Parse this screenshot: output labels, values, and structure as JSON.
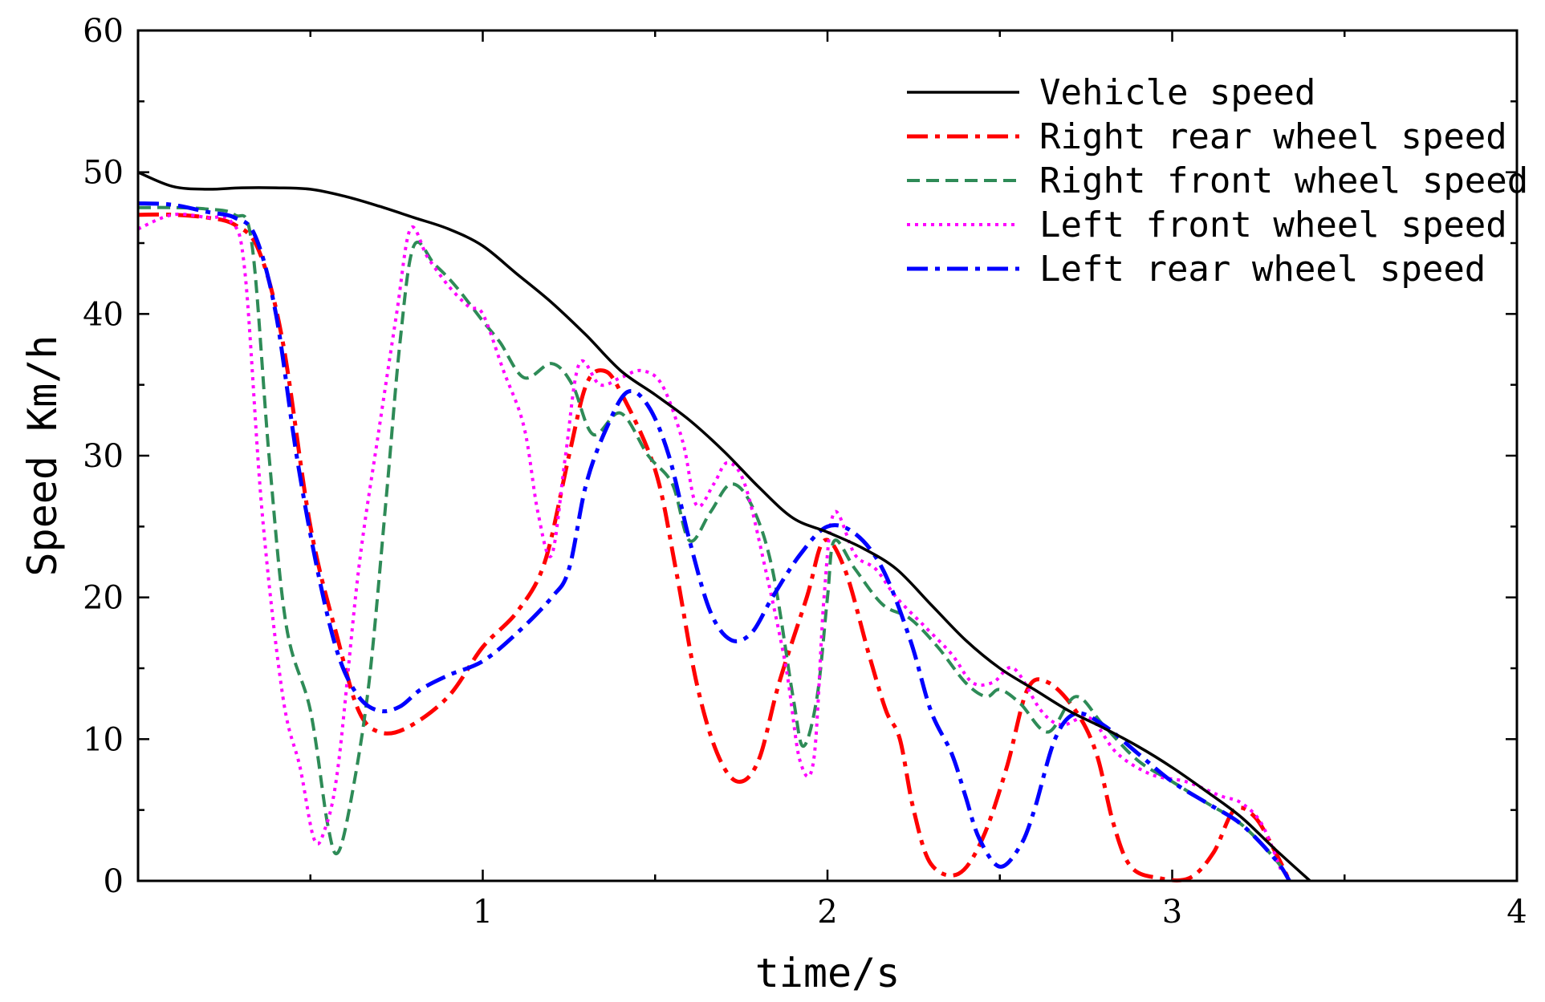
{
  "chart_data": {
    "type": "line",
    "title": "",
    "xlabel": "time/s",
    "ylabel": "Speed Km/h",
    "xlim": [
      0,
      4
    ],
    "ylim": [
      0,
      60
    ],
    "xticks": [
      1,
      2,
      3,
      4
    ],
    "yticks": [
      0,
      10,
      20,
      30,
      40,
      50,
      60
    ],
    "grid": false,
    "legend_position": "top-right",
    "series": [
      {
        "name": "Vehicle speed",
        "color": "#000000",
        "dash": "solid",
        "points": [
          [
            0,
            50
          ],
          [
            0.1,
            49
          ],
          [
            0.2,
            48.8
          ],
          [
            0.3,
            48.9
          ],
          [
            0.4,
            48.9
          ],
          [
            0.5,
            48.8
          ],
          [
            0.6,
            48.3
          ],
          [
            0.7,
            47.6
          ],
          [
            0.8,
            46.8
          ],
          [
            0.9,
            46
          ],
          [
            1.0,
            44.8
          ],
          [
            1.1,
            42.8
          ],
          [
            1.2,
            40.8
          ],
          [
            1.3,
            38.5
          ],
          [
            1.4,
            36
          ],
          [
            1.5,
            34.3
          ],
          [
            1.6,
            32.5
          ],
          [
            1.7,
            30.3
          ],
          [
            1.8,
            27.8
          ],
          [
            1.9,
            25.6
          ],
          [
            2.0,
            24.6
          ],
          [
            2.1,
            23.5
          ],
          [
            2.2,
            22
          ],
          [
            2.3,
            19.5
          ],
          [
            2.4,
            17
          ],
          [
            2.5,
            15
          ],
          [
            2.6,
            13.5
          ],
          [
            2.7,
            12
          ],
          [
            2.8,
            10.8
          ],
          [
            2.9,
            9.5
          ],
          [
            3.0,
            8
          ],
          [
            3.1,
            6.3
          ],
          [
            3.2,
            4.5
          ],
          [
            3.3,
            2.2
          ],
          [
            3.4,
            0
          ]
        ]
      },
      {
        "name": "Right rear wheel speed",
        "color": "#ff0000",
        "dash": "dash-dot",
        "points": [
          [
            0,
            47
          ],
          [
            0.1,
            47
          ],
          [
            0.2,
            46.8
          ],
          [
            0.28,
            46.3
          ],
          [
            0.35,
            44.5
          ],
          [
            0.42,
            38
          ],
          [
            0.5,
            25
          ],
          [
            0.58,
            17
          ],
          [
            0.64,
            12
          ],
          [
            0.7,
            10.5
          ],
          [
            0.78,
            10.8
          ],
          [
            0.9,
            13
          ],
          [
            1.0,
            16.5
          ],
          [
            1.1,
            19
          ],
          [
            1.18,
            22.5
          ],
          [
            1.25,
            30
          ],
          [
            1.3,
            35
          ],
          [
            1.35,
            36
          ],
          [
            1.4,
            34.5
          ],
          [
            1.5,
            29
          ],
          [
            1.56,
            22
          ],
          [
            1.62,
            14
          ],
          [
            1.68,
            9
          ],
          [
            1.74,
            7
          ],
          [
            1.8,
            8.5
          ],
          [
            1.86,
            14
          ],
          [
            1.94,
            20
          ],
          [
            1.99,
            24
          ],
          [
            2.05,
            22
          ],
          [
            2.12,
            16
          ],
          [
            2.17,
            12
          ],
          [
            2.21,
            10
          ],
          [
            2.25,
            5
          ],
          [
            2.3,
            1.2
          ],
          [
            2.38,
            0.5
          ],
          [
            2.45,
            3
          ],
          [
            2.52,
            8
          ],
          [
            2.58,
            13.5
          ],
          [
            2.64,
            14
          ],
          [
            2.72,
            12
          ],
          [
            2.78,
            9
          ],
          [
            2.83,
            4
          ],
          [
            2.88,
            1
          ],
          [
            2.96,
            0.2
          ],
          [
            3.05,
            0.2
          ],
          [
            3.12,
            2
          ],
          [
            3.18,
            5
          ],
          [
            3.24,
            4.5
          ],
          [
            3.3,
            2
          ],
          [
            3.34,
            0
          ]
        ]
      },
      {
        "name": "Right front wheel speed",
        "color": "#2e8b57",
        "dash": "dash",
        "points": [
          [
            0,
            47.5
          ],
          [
            0.1,
            47.5
          ],
          [
            0.2,
            47.4
          ],
          [
            0.28,
            47
          ],
          [
            0.33,
            45
          ],
          [
            0.38,
            30
          ],
          [
            0.43,
            18
          ],
          [
            0.5,
            12
          ],
          [
            0.55,
            4
          ],
          [
            0.58,
            2
          ],
          [
            0.62,
            6
          ],
          [
            0.67,
            14
          ],
          [
            0.72,
            27
          ],
          [
            0.76,
            38
          ],
          [
            0.8,
            44.8
          ],
          [
            0.86,
            43.5
          ],
          [
            0.92,
            42
          ],
          [
            1.0,
            39.5
          ],
          [
            1.05,
            38
          ],
          [
            1.12,
            35.5
          ],
          [
            1.2,
            36.5
          ],
          [
            1.26,
            35
          ],
          [
            1.32,
            31.5
          ],
          [
            1.4,
            33
          ],
          [
            1.48,
            30
          ],
          [
            1.55,
            28
          ],
          [
            1.6,
            24
          ],
          [
            1.66,
            26
          ],
          [
            1.72,
            28
          ],
          [
            1.78,
            26.5
          ],
          [
            1.84,
            22
          ],
          [
            1.9,
            13
          ],
          [
            1.93,
            9.5
          ],
          [
            1.97,
            13
          ],
          [
            2.0,
            20
          ],
          [
            2.02,
            24
          ],
          [
            2.08,
            22
          ],
          [
            2.16,
            19.5
          ],
          [
            2.24,
            18.5
          ],
          [
            2.32,
            16.5
          ],
          [
            2.4,
            14
          ],
          [
            2.46,
            13
          ],
          [
            2.5,
            13.5
          ],
          [
            2.56,
            12.5
          ],
          [
            2.64,
            10.5
          ],
          [
            2.72,
            13
          ],
          [
            2.8,
            11
          ],
          [
            2.9,
            8.5
          ],
          [
            3.0,
            7
          ],
          [
            3.1,
            5.5
          ],
          [
            3.2,
            4
          ],
          [
            3.3,
            1.5
          ],
          [
            3.34,
            0
          ]
        ]
      },
      {
        "name": "Left front wheel speed",
        "color": "#ff00ff",
        "dash": "dot",
        "points": [
          [
            0,
            46
          ],
          [
            0.1,
            47
          ],
          [
            0.2,
            46.8
          ],
          [
            0.27,
            46.5
          ],
          [
            0.31,
            43
          ],
          [
            0.36,
            26
          ],
          [
            0.42,
            13
          ],
          [
            0.47,
            8
          ],
          [
            0.51,
            3
          ],
          [
            0.54,
            3.5
          ],
          [
            0.58,
            8
          ],
          [
            0.64,
            22
          ],
          [
            0.7,
            32
          ],
          [
            0.75,
            40
          ],
          [
            0.79,
            46
          ],
          [
            0.84,
            44
          ],
          [
            0.9,
            42
          ],
          [
            0.96,
            40.5
          ],
          [
            1.0,
            40
          ],
          [
            1.06,
            36
          ],
          [
            1.12,
            32
          ],
          [
            1.16,
            26
          ],
          [
            1.2,
            23
          ],
          [
            1.24,
            30
          ],
          [
            1.28,
            36.5
          ],
          [
            1.34,
            35
          ],
          [
            1.4,
            35.5
          ],
          [
            1.46,
            36
          ],
          [
            1.52,
            35
          ],
          [
            1.58,
            31
          ],
          [
            1.62,
            26.5
          ],
          [
            1.67,
            28
          ],
          [
            1.71,
            29.5
          ],
          [
            1.76,
            28
          ],
          [
            1.82,
            22
          ],
          [
            1.88,
            15
          ],
          [
            1.92,
            8.5
          ],
          [
            1.96,
            8.5
          ],
          [
            1.99,
            20
          ],
          [
            2.02,
            26
          ],
          [
            2.08,
            23
          ],
          [
            2.14,
            22
          ],
          [
            2.2,
            20
          ],
          [
            2.28,
            18
          ],
          [
            2.36,
            16
          ],
          [
            2.42,
            14
          ],
          [
            2.48,
            14
          ],
          [
            2.54,
            15
          ],
          [
            2.62,
            12
          ],
          [
            2.68,
            11
          ],
          [
            2.76,
            11.5
          ],
          [
            2.84,
            9
          ],
          [
            2.94,
            7.5
          ],
          [
            3.04,
            7
          ],
          [
            3.14,
            6
          ],
          [
            3.2,
            5.5
          ],
          [
            3.26,
            4
          ],
          [
            3.32,
            0.5
          ]
        ]
      },
      {
        "name": "Left rear wheel speed",
        "color": "#0000ff",
        "dash": "dash-dot",
        "points": [
          [
            0,
            47.8
          ],
          [
            0.1,
            47.7
          ],
          [
            0.2,
            47.2
          ],
          [
            0.28,
            46.8
          ],
          [
            0.34,
            45.5
          ],
          [
            0.4,
            40
          ],
          [
            0.46,
            30
          ],
          [
            0.52,
            22
          ],
          [
            0.58,
            16
          ],
          [
            0.64,
            13
          ],
          [
            0.7,
            12
          ],
          [
            0.76,
            12.3
          ],
          [
            0.82,
            13.5
          ],
          [
            0.9,
            14.5
          ],
          [
            1.0,
            15.5
          ],
          [
            1.1,
            17.5
          ],
          [
            1.2,
            20
          ],
          [
            1.25,
            22
          ],
          [
            1.3,
            28
          ],
          [
            1.36,
            32
          ],
          [
            1.42,
            34.5
          ],
          [
            1.48,
            33.5
          ],
          [
            1.54,
            30
          ],
          [
            1.6,
            24
          ],
          [
            1.66,
            19
          ],
          [
            1.72,
            17
          ],
          [
            1.78,
            17.5
          ],
          [
            1.84,
            20
          ],
          [
            1.92,
            23
          ],
          [
            2.0,
            25
          ],
          [
            2.08,
            24.5
          ],
          [
            2.16,
            22
          ],
          [
            2.24,
            17
          ],
          [
            2.3,
            12
          ],
          [
            2.36,
            9
          ],
          [
            2.4,
            6
          ],
          [
            2.44,
            3
          ],
          [
            2.5,
            1
          ],
          [
            2.56,
            2.5
          ],
          [
            2.6,
            5
          ],
          [
            2.66,
            10
          ],
          [
            2.72,
            11.8
          ],
          [
            2.8,
            11
          ],
          [
            2.9,
            9
          ],
          [
            3.0,
            7
          ],
          [
            3.1,
            5.5
          ],
          [
            3.2,
            4
          ],
          [
            3.3,
            1.5
          ],
          [
            3.34,
            0
          ]
        ]
      }
    ]
  }
}
